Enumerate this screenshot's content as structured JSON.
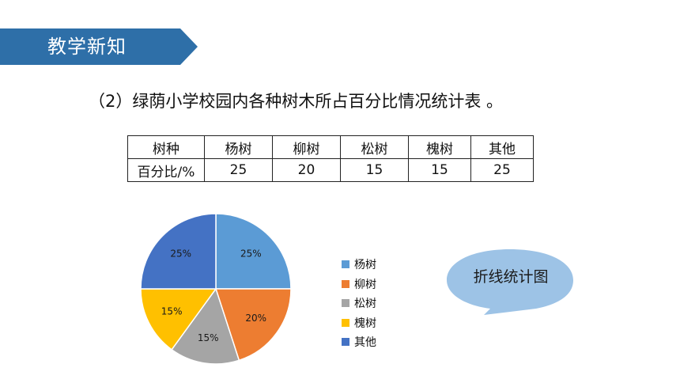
{
  "header": {
    "title": "教学新知",
    "banner_color": "#2e6fa8"
  },
  "subtitle": "（2）绿荫小学校园内各种树木所占百分比情况统计表 。",
  "table": {
    "header_label": "树种",
    "columns": [
      "杨树",
      "柳树",
      "松树",
      "槐树",
      "其他"
    ],
    "row_label": "百分比/%",
    "values": [
      "25",
      "20",
      "15",
      "15",
      "25"
    ]
  },
  "chart_data": {
    "type": "pie",
    "categories": [
      "杨树",
      "柳树",
      "松树",
      "槐树",
      "其他"
    ],
    "values": [
      25,
      20,
      15,
      15,
      25
    ],
    "labels": [
      "25%",
      "20%",
      "15%",
      "15%",
      "25%"
    ],
    "colors": [
      "#5b9bd5",
      "#ed7d31",
      "#a5a5a5",
      "#ffc000",
      "#4472c4"
    ],
    "legend": "right",
    "title": ""
  },
  "bubble": {
    "label": "折线统计图",
    "color": "#9dc3e6"
  }
}
